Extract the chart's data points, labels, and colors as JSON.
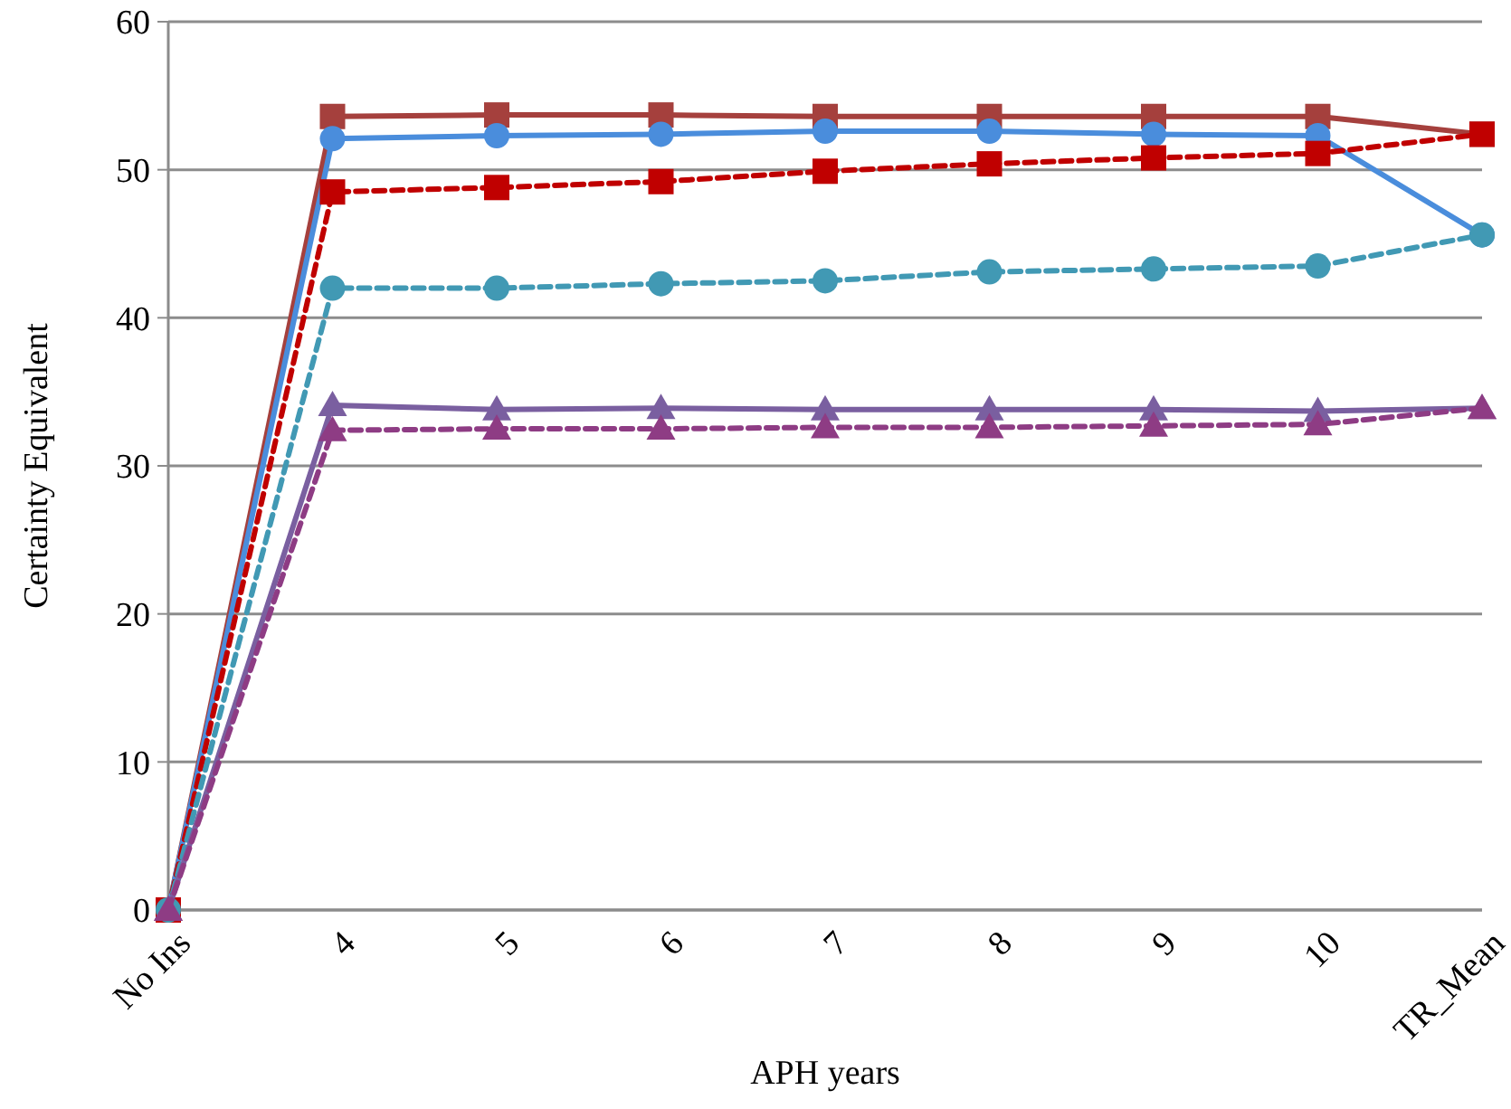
{
  "chart_data": {
    "type": "line",
    "xlabel": "APH years",
    "ylabel": "Certainty Equivalent",
    "categories": [
      "No Ins",
      "4",
      "5",
      "6",
      "7",
      "8",
      "9",
      "10",
      "TR_Mean"
    ],
    "ylim": [
      0,
      60
    ],
    "yticks": [
      0,
      10,
      20,
      30,
      40,
      50,
      60
    ],
    "grid": "y",
    "series": [
      {
        "color": "#a5403d",
        "marker": "square",
        "line_style": "solid",
        "values": [
          0,
          53.6,
          53.7,
          53.7,
          53.6,
          53.6,
          53.6,
          53.6,
          52.4
        ]
      },
      {
        "color": "#4a8ddc",
        "marker": "circle",
        "line_style": "solid",
        "values": [
          0,
          52.1,
          52.3,
          52.4,
          52.6,
          52.6,
          52.4,
          52.3,
          45.6
        ]
      },
      {
        "color": "#c00000",
        "marker": "square",
        "line_style": "dashed",
        "values": [
          0,
          48.5,
          48.8,
          49.2,
          49.9,
          50.4,
          50.8,
          51.1,
          52.4
        ]
      },
      {
        "color": "#4199b4",
        "marker": "circle",
        "line_style": "dashed",
        "values": [
          0,
          42.0,
          42.0,
          42.3,
          42.5,
          43.1,
          43.3,
          43.5,
          45.6
        ]
      },
      {
        "color": "#7a5fa0",
        "marker": "triangle",
        "line_style": "solid",
        "values": [
          0,
          34.1,
          33.8,
          33.9,
          33.8,
          33.8,
          33.8,
          33.7,
          33.9
        ]
      },
      {
        "color": "#8e3c84",
        "marker": "triangle",
        "line_style": "dashed",
        "values": [
          0,
          32.4,
          32.5,
          32.5,
          32.6,
          32.6,
          32.7,
          32.8,
          33.9
        ]
      }
    ]
  }
}
